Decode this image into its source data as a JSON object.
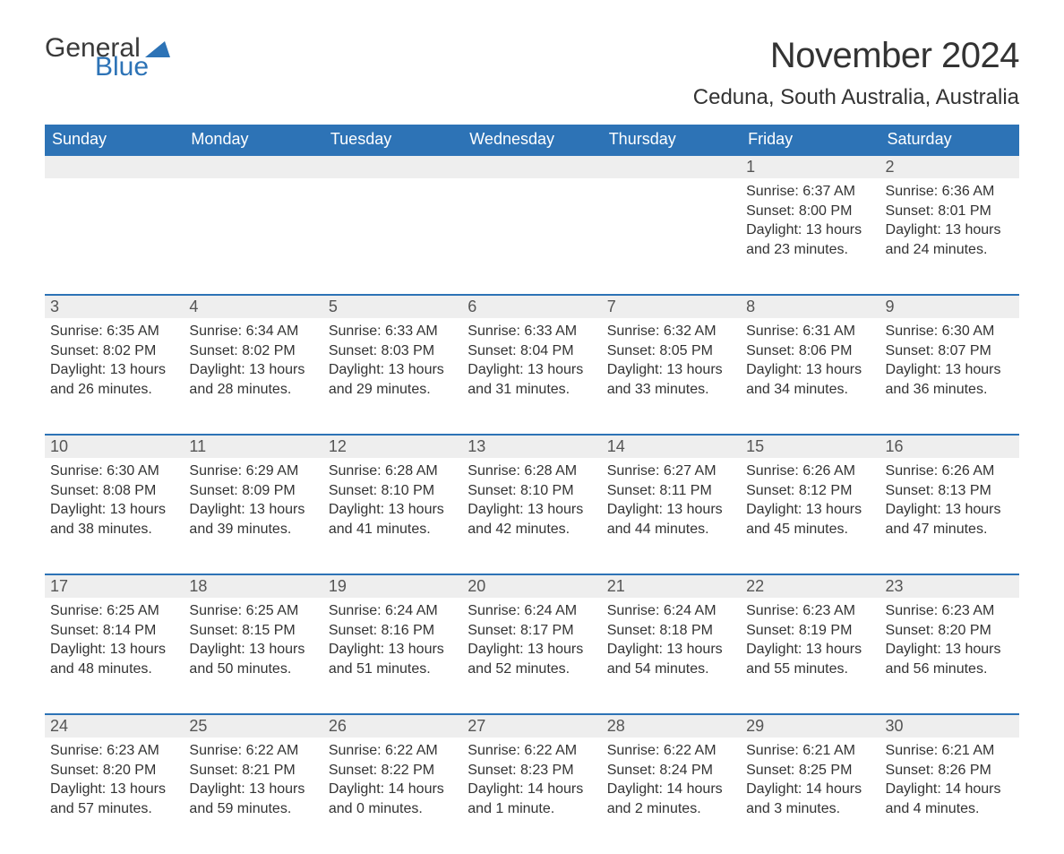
{
  "logo": {
    "word1": "General",
    "word2": "Blue",
    "color1": "#3a3a3a",
    "color2": "#2d73b6"
  },
  "title": {
    "month": "November 2024",
    "location": "Ceduna, South Australia, Australia",
    "title_fontsize": 40,
    "loc_fontsize": 24,
    "text_color": "#333333"
  },
  "style": {
    "header_bg": "#2d73b6",
    "header_fg": "#ffffff",
    "daynum_bg": "#eeeeee",
    "daynum_fg": "#555555",
    "row_border_color": "#2d73b6",
    "body_fg": "#333333",
    "page_bg": "#ffffff",
    "header_fontsize": 18,
    "daynum_fontsize": 18,
    "body_fontsize": 16
  },
  "columns": [
    "Sunday",
    "Monday",
    "Tuesday",
    "Wednesday",
    "Thursday",
    "Friday",
    "Saturday"
  ],
  "weeks": [
    {
      "nums": [
        "",
        "",
        "",
        "",
        "",
        "1",
        "2"
      ],
      "cells": [
        null,
        null,
        null,
        null,
        null,
        {
          "sunrise": "Sunrise: 6:37 AM",
          "sunset": "Sunset: 8:00 PM",
          "day1": "Daylight: 13 hours",
          "day2": "and 23 minutes."
        },
        {
          "sunrise": "Sunrise: 6:36 AM",
          "sunset": "Sunset: 8:01 PM",
          "day1": "Daylight: 13 hours",
          "day2": "and 24 minutes."
        }
      ]
    },
    {
      "nums": [
        "3",
        "4",
        "5",
        "6",
        "7",
        "8",
        "9"
      ],
      "cells": [
        {
          "sunrise": "Sunrise: 6:35 AM",
          "sunset": "Sunset: 8:02 PM",
          "day1": "Daylight: 13 hours",
          "day2": "and 26 minutes."
        },
        {
          "sunrise": "Sunrise: 6:34 AM",
          "sunset": "Sunset: 8:02 PM",
          "day1": "Daylight: 13 hours",
          "day2": "and 28 minutes."
        },
        {
          "sunrise": "Sunrise: 6:33 AM",
          "sunset": "Sunset: 8:03 PM",
          "day1": "Daylight: 13 hours",
          "day2": "and 29 minutes."
        },
        {
          "sunrise": "Sunrise: 6:33 AM",
          "sunset": "Sunset: 8:04 PM",
          "day1": "Daylight: 13 hours",
          "day2": "and 31 minutes."
        },
        {
          "sunrise": "Sunrise: 6:32 AM",
          "sunset": "Sunset: 8:05 PM",
          "day1": "Daylight: 13 hours",
          "day2": "and 33 minutes."
        },
        {
          "sunrise": "Sunrise: 6:31 AM",
          "sunset": "Sunset: 8:06 PM",
          "day1": "Daylight: 13 hours",
          "day2": "and 34 minutes."
        },
        {
          "sunrise": "Sunrise: 6:30 AM",
          "sunset": "Sunset: 8:07 PM",
          "day1": "Daylight: 13 hours",
          "day2": "and 36 minutes."
        }
      ]
    },
    {
      "nums": [
        "10",
        "11",
        "12",
        "13",
        "14",
        "15",
        "16"
      ],
      "cells": [
        {
          "sunrise": "Sunrise: 6:30 AM",
          "sunset": "Sunset: 8:08 PM",
          "day1": "Daylight: 13 hours",
          "day2": "and 38 minutes."
        },
        {
          "sunrise": "Sunrise: 6:29 AM",
          "sunset": "Sunset: 8:09 PM",
          "day1": "Daylight: 13 hours",
          "day2": "and 39 minutes."
        },
        {
          "sunrise": "Sunrise: 6:28 AM",
          "sunset": "Sunset: 8:10 PM",
          "day1": "Daylight: 13 hours",
          "day2": "and 41 minutes."
        },
        {
          "sunrise": "Sunrise: 6:28 AM",
          "sunset": "Sunset: 8:10 PM",
          "day1": "Daylight: 13 hours",
          "day2": "and 42 minutes."
        },
        {
          "sunrise": "Sunrise: 6:27 AM",
          "sunset": "Sunset: 8:11 PM",
          "day1": "Daylight: 13 hours",
          "day2": "and 44 minutes."
        },
        {
          "sunrise": "Sunrise: 6:26 AM",
          "sunset": "Sunset: 8:12 PM",
          "day1": "Daylight: 13 hours",
          "day2": "and 45 minutes."
        },
        {
          "sunrise": "Sunrise: 6:26 AM",
          "sunset": "Sunset: 8:13 PM",
          "day1": "Daylight: 13 hours",
          "day2": "and 47 minutes."
        }
      ]
    },
    {
      "nums": [
        "17",
        "18",
        "19",
        "20",
        "21",
        "22",
        "23"
      ],
      "cells": [
        {
          "sunrise": "Sunrise: 6:25 AM",
          "sunset": "Sunset: 8:14 PM",
          "day1": "Daylight: 13 hours",
          "day2": "and 48 minutes."
        },
        {
          "sunrise": "Sunrise: 6:25 AM",
          "sunset": "Sunset: 8:15 PM",
          "day1": "Daylight: 13 hours",
          "day2": "and 50 minutes."
        },
        {
          "sunrise": "Sunrise: 6:24 AM",
          "sunset": "Sunset: 8:16 PM",
          "day1": "Daylight: 13 hours",
          "day2": "and 51 minutes."
        },
        {
          "sunrise": "Sunrise: 6:24 AM",
          "sunset": "Sunset: 8:17 PM",
          "day1": "Daylight: 13 hours",
          "day2": "and 52 minutes."
        },
        {
          "sunrise": "Sunrise: 6:24 AM",
          "sunset": "Sunset: 8:18 PM",
          "day1": "Daylight: 13 hours",
          "day2": "and 54 minutes."
        },
        {
          "sunrise": "Sunrise: 6:23 AM",
          "sunset": "Sunset: 8:19 PM",
          "day1": "Daylight: 13 hours",
          "day2": "and 55 minutes."
        },
        {
          "sunrise": "Sunrise: 6:23 AM",
          "sunset": "Sunset: 8:20 PM",
          "day1": "Daylight: 13 hours",
          "day2": "and 56 minutes."
        }
      ]
    },
    {
      "nums": [
        "24",
        "25",
        "26",
        "27",
        "28",
        "29",
        "30"
      ],
      "cells": [
        {
          "sunrise": "Sunrise: 6:23 AM",
          "sunset": "Sunset: 8:20 PM",
          "day1": "Daylight: 13 hours",
          "day2": "and 57 minutes."
        },
        {
          "sunrise": "Sunrise: 6:22 AM",
          "sunset": "Sunset: 8:21 PM",
          "day1": "Daylight: 13 hours",
          "day2": "and 59 minutes."
        },
        {
          "sunrise": "Sunrise: 6:22 AM",
          "sunset": "Sunset: 8:22 PM",
          "day1": "Daylight: 14 hours",
          "day2": "and 0 minutes."
        },
        {
          "sunrise": "Sunrise: 6:22 AM",
          "sunset": "Sunset: 8:23 PM",
          "day1": "Daylight: 14 hours",
          "day2": "and 1 minute."
        },
        {
          "sunrise": "Sunrise: 6:22 AM",
          "sunset": "Sunset: 8:24 PM",
          "day1": "Daylight: 14 hours",
          "day2": "and 2 minutes."
        },
        {
          "sunrise": "Sunrise: 6:21 AM",
          "sunset": "Sunset: 8:25 PM",
          "day1": "Daylight: 14 hours",
          "day2": "and 3 minutes."
        },
        {
          "sunrise": "Sunrise: 6:21 AM",
          "sunset": "Sunset: 8:26 PM",
          "day1": "Daylight: 14 hours",
          "day2": "and 4 minutes."
        }
      ]
    }
  ]
}
